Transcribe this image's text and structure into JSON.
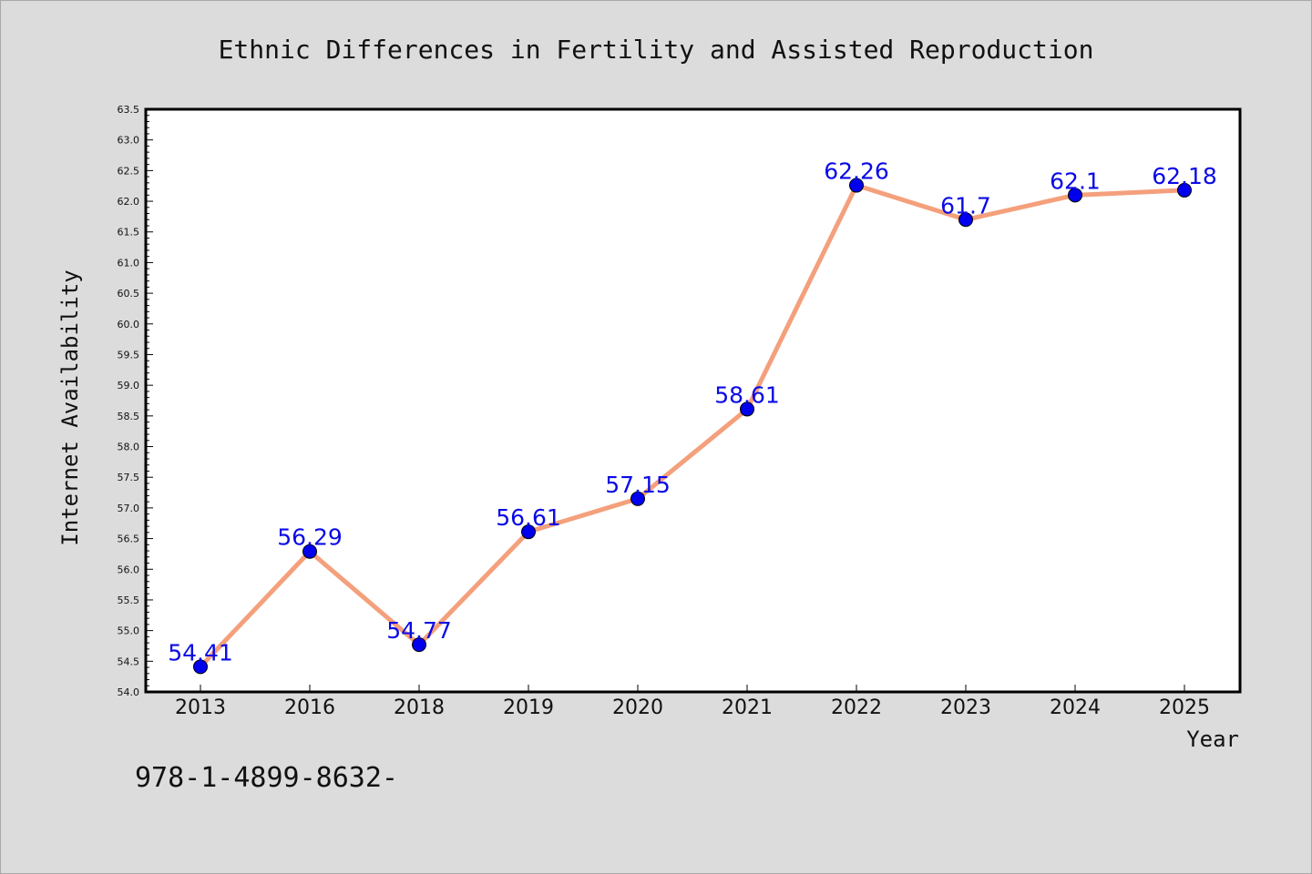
{
  "chart_data": {
    "type": "line",
    "title": "Ethnic Differences in Fertility and Assisted Reproduction",
    "xlabel": "Year",
    "ylabel": "Internet Availability",
    "categories": [
      "2013",
      "2016",
      "2018",
      "2019",
      "2020",
      "2021",
      "2022",
      "2023",
      "2024",
      "2025"
    ],
    "series": [
      {
        "values": [
          54.41,
          56.29,
          54.77,
          56.61,
          57.15,
          58.61,
          62.26,
          61.7,
          62.1,
          62.18
        ],
        "data_labels": [
          "54.41",
          "56.29",
          "54.77",
          "56.61",
          "57.15",
          "58.61",
          "62.26",
          "61.7",
          "62.1",
          "62.18"
        ],
        "line_color": "#f4a07c",
        "marker_color": "#0000ee"
      }
    ],
    "ylim": [
      54.0,
      63.5
    ],
    "yticks": [
      "54.0",
      "54.5",
      "55.0",
      "55.5",
      "56.0",
      "56.5",
      "57.0",
      "57.5",
      "58.0",
      "58.5",
      "59.0",
      "59.5",
      "60.0",
      "60.5",
      "61.0",
      "61.5",
      "62.0",
      "62.5",
      "63.0",
      "63.5"
    ],
    "grid": false,
    "legend": "none"
  },
  "footer": {
    "isbn_text": "978-1-4899-8632-"
  },
  "colors": {
    "background": "#dcdcdc",
    "plot_background": "#ffffff",
    "line": "#f4a07c",
    "marker": "#0000ee",
    "data_label": "#0a0ae6"
  }
}
